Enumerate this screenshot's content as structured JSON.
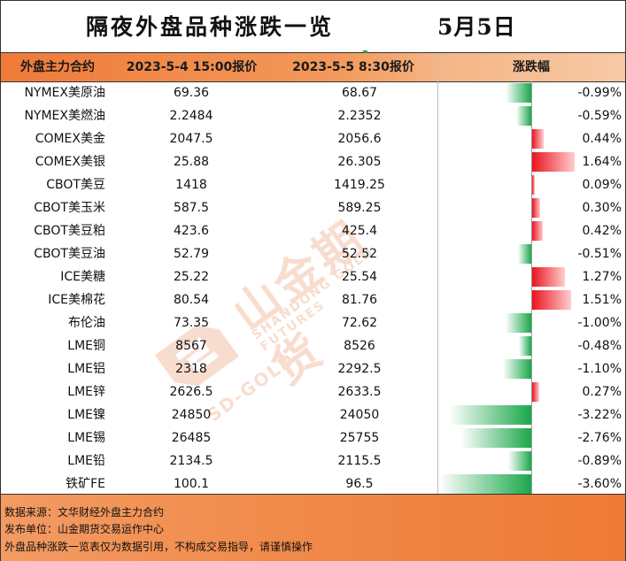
{
  "header": {
    "title": "隔夜外盘品种涨跌一览",
    "date": "5月5日"
  },
  "table": {
    "columns": [
      "外盘主力合约",
      "2023-5-4 15:00报价",
      "2023-5-5 8:30报价",
      "涨跌幅"
    ],
    "rows": [
      {
        "name": "NYMEX美原油",
        "p1": "69.36",
        "p2": "68.67",
        "pct_text": "-0.99%",
        "pct": -0.99
      },
      {
        "name": "NYMEX美燃油",
        "p1": "2.2484",
        "p2": "2.2352",
        "pct_text": "-0.59%",
        "pct": -0.59
      },
      {
        "name": "COMEX美金",
        "p1": "2047.5",
        "p2": "2056.6",
        "pct_text": "0.44%",
        "pct": 0.44
      },
      {
        "name": "COMEX美银",
        "p1": "25.88",
        "p2": "26.305",
        "pct_text": "1.64%",
        "pct": 1.64
      },
      {
        "name": "CBOT美豆",
        "p1": "1418",
        "p2": "1419.25",
        "pct_text": "0.09%",
        "pct": 0.09
      },
      {
        "name": "CBOT美玉米",
        "p1": "587.5",
        "p2": "589.25",
        "pct_text": "0.30%",
        "pct": 0.3
      },
      {
        "name": "CBOT美豆粕",
        "p1": "423.6",
        "p2": "425.4",
        "pct_text": "0.42%",
        "pct": 0.42
      },
      {
        "name": "CBOT美豆油",
        "p1": "52.79",
        "p2": "52.52",
        "pct_text": "-0.51%",
        "pct": -0.51
      },
      {
        "name": "ICE美糖",
        "p1": "25.22",
        "p2": "25.54",
        "pct_text": "1.27%",
        "pct": 1.27
      },
      {
        "name": "ICE美棉花",
        "p1": "80.54",
        "p2": "81.76",
        "pct_text": "1.51%",
        "pct": 1.51
      },
      {
        "name": "布伦油",
        "p1": "73.35",
        "p2": "72.62",
        "pct_text": "-1.00%",
        "pct": -1.0
      },
      {
        "name": "LME铜",
        "p1": "8567",
        "p2": "8526",
        "pct_text": "-0.48%",
        "pct": -0.48
      },
      {
        "name": "LME铝",
        "p1": "2318",
        "p2": "2292.5",
        "pct_text": "-1.10%",
        "pct": -1.1
      },
      {
        "name": "LME锌",
        "p1": "2626.5",
        "p2": "2633.5",
        "pct_text": "0.27%",
        "pct": 0.27
      },
      {
        "name": "LME镍",
        "p1": "24850",
        "p2": "24050",
        "pct_text": "-3.22%",
        "pct": -3.22
      },
      {
        "name": "LME锡",
        "p1": "26485",
        "p2": "25755",
        "pct_text": "-2.76%",
        "pct": -2.76
      },
      {
        "name": "LME铅",
        "p1": "2134.5",
        "p2": "2115.5",
        "pct_text": "-0.89%",
        "pct": -0.89
      },
      {
        "name": "铁矿FE",
        "p1": "100.1",
        "p2": "96.5",
        "pct_text": "-3.60%",
        "pct": -3.6
      }
    ]
  },
  "colors": {
    "header_orange": "#f07a3a",
    "bar_negative": "#19a84a",
    "bar_positive": "#e8141e",
    "footer_orange": "#ee7a35"
  },
  "watermark": {
    "brand_cn": "山金期货",
    "brand_en": "SD-GOLD",
    "brand_sub": "SHANDONG GOLD FUTURES"
  },
  "footer": {
    "source": "数据来源：文华财经外盘主力合约",
    "publisher": "发布单位：山金期货交易运作中心",
    "disclaimer": "外盘品种涨跌一览表仅为数据引用，不构成交易指导，请谨慎操作"
  }
}
